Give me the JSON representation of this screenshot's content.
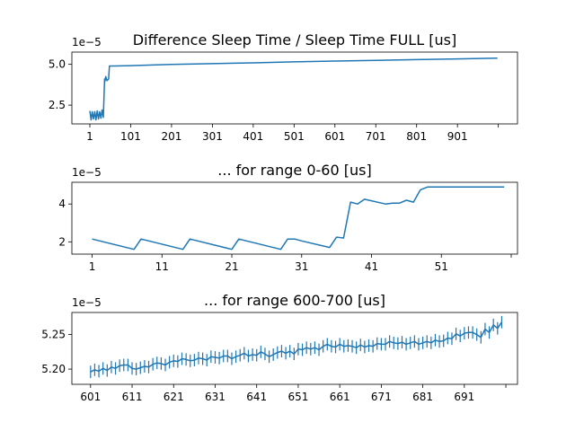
{
  "chart_data": [
    {
      "type": "line",
      "title": "Difference Sleep Time / Sleep Time FULL [us]",
      "offset_label": "1e−5",
      "xlim": [
        -43,
        1048
      ],
      "ylim": [
        1.35,
        5.75
      ],
      "xticks": [
        1,
        101,
        201,
        301,
        401,
        501,
        601,
        701,
        801,
        901,
        1001
      ],
      "xtick_labels": [
        "1",
        "101",
        "201",
        "301",
        "401",
        "501",
        "601",
        "701",
        "801",
        "901",
        ""
      ],
      "yticks": [
        2.5,
        5.0
      ],
      "ytick_labels": [
        "2.5",
        "5.0"
      ],
      "series": [
        {
          "x": [
            1,
            4,
            7,
            10,
            13,
            16,
            19,
            22,
            25,
            28,
            31,
            34,
            37,
            38,
            40,
            43,
            47,
            49,
            60,
            100,
            200,
            300,
            400,
            500,
            600,
            700,
            800,
            900,
            999
          ],
          "y": [
            2.15,
            1.6,
            2.1,
            1.65,
            2.1,
            1.6,
            2.15,
            1.65,
            2.1,
            1.7,
            2.2,
            1.75,
            4.1,
            3.95,
            4.25,
            4.0,
            4.1,
            4.9,
            4.9,
            4.92,
            4.99,
            5.04,
            5.09,
            5.15,
            5.2,
            5.24,
            5.29,
            5.33,
            5.38
          ]
        }
      ]
    },
    {
      "type": "line",
      "title": "... for range 0-60 [us]",
      "offset_label": "1e−5",
      "xlim": [
        -1.9,
        61.9
      ],
      "ylim": [
        1.35,
        5.15
      ],
      "xticks": [
        1,
        11,
        21,
        31,
        41,
        51,
        61
      ],
      "xtick_labels": [
        "1",
        "11",
        "21",
        "31",
        "41",
        "51",
        ""
      ],
      "yticks": [
        2,
        4
      ],
      "ytick_labels": [
        "2",
        "4"
      ],
      "series": [
        {
          "x": [
            1,
            7,
            8,
            14,
            15,
            21,
            22,
            28,
            29,
            30,
            31,
            35,
            36,
            37,
            38,
            39,
            40,
            43,
            44,
            45,
            46,
            47,
            48,
            49,
            50,
            60
          ],
          "y": [
            2.15,
            1.6,
            2.15,
            1.6,
            2.15,
            1.6,
            2.15,
            1.6,
            2.15,
            2.15,
            2.05,
            1.7,
            2.25,
            2.2,
            4.1,
            4.0,
            4.25,
            4.0,
            4.05,
            4.05,
            4.2,
            4.1,
            4.75,
            4.9,
            4.9,
            4.9
          ]
        }
      ]
    },
    {
      "type": "line",
      "title": "... for range 600-700 [us]",
      "offset_label": "1e−5",
      "xlim": [
        596.5,
        703.8
      ],
      "ylim": [
        5.178,
        5.282
      ],
      "xticks": [
        601,
        611,
        621,
        631,
        641,
        651,
        661,
        671,
        681,
        691,
        701
      ],
      "xtick_labels": [
        "601",
        "611",
        "621",
        "631",
        "641",
        "651",
        "661",
        "671",
        "681",
        "691",
        ""
      ],
      "yticks": [
        5.2,
        5.25
      ],
      "ytick_labels": [
        "5.20",
        "5.25"
      ],
      "error": 0.009,
      "series": [
        {
          "x": [
            601,
            602,
            603,
            604,
            605,
            606,
            607,
            608,
            609,
            610,
            611,
            612,
            613,
            614,
            615,
            616,
            617,
            618,
            619,
            620,
            621,
            622,
            623,
            624,
            625,
            626,
            627,
            628,
            629,
            630,
            631,
            632,
            633,
            634,
            635,
            636,
            637,
            638,
            639,
            640,
            641,
            642,
            643,
            644,
            645,
            646,
            647,
            648,
            649,
            650,
            651,
            652,
            653,
            654,
            655,
            656,
            657,
            658,
            659,
            660,
            661,
            662,
            663,
            664,
            665,
            666,
            667,
            668,
            669,
            670,
            671,
            672,
            673,
            674,
            675,
            676,
            677,
            678,
            679,
            680,
            681,
            682,
            683,
            684,
            685,
            686,
            687,
            688,
            689,
            690,
            691,
            692,
            693,
            694,
            695,
            696,
            697,
            698,
            699,
            700
          ],
          "y": [
            5.196,
            5.199,
            5.197,
            5.201,
            5.198,
            5.203,
            5.201,
            5.205,
            5.206,
            5.206,
            5.201,
            5.2,
            5.202,
            5.204,
            5.203,
            5.207,
            5.209,
            5.208,
            5.206,
            5.21,
            5.212,
            5.211,
            5.215,
            5.214,
            5.212,
            5.213,
            5.216,
            5.215,
            5.213,
            5.218,
            5.217,
            5.216,
            5.219,
            5.219,
            5.215,
            5.218,
            5.22,
            5.223,
            5.219,
            5.221,
            5.22,
            5.225,
            5.222,
            5.218,
            5.221,
            5.224,
            5.226,
            5.223,
            5.226,
            5.222,
            5.229,
            5.228,
            5.231,
            5.229,
            5.231,
            5.228,
            5.233,
            5.236,
            5.233,
            5.232,
            5.236,
            5.233,
            5.234,
            5.233,
            5.231,
            5.235,
            5.232,
            5.234,
            5.233,
            5.237,
            5.236,
            5.236,
            5.24,
            5.238,
            5.237,
            5.239,
            5.236,
            5.238,
            5.24,
            5.236,
            5.238,
            5.24,
            5.238,
            5.242,
            5.24,
            5.241,
            5.245,
            5.244,
            5.251,
            5.248,
            5.252,
            5.253,
            5.253,
            5.25,
            5.246,
            5.258,
            5.253,
            5.264,
            5.259,
            5.268
          ]
        }
      ]
    }
  ]
}
